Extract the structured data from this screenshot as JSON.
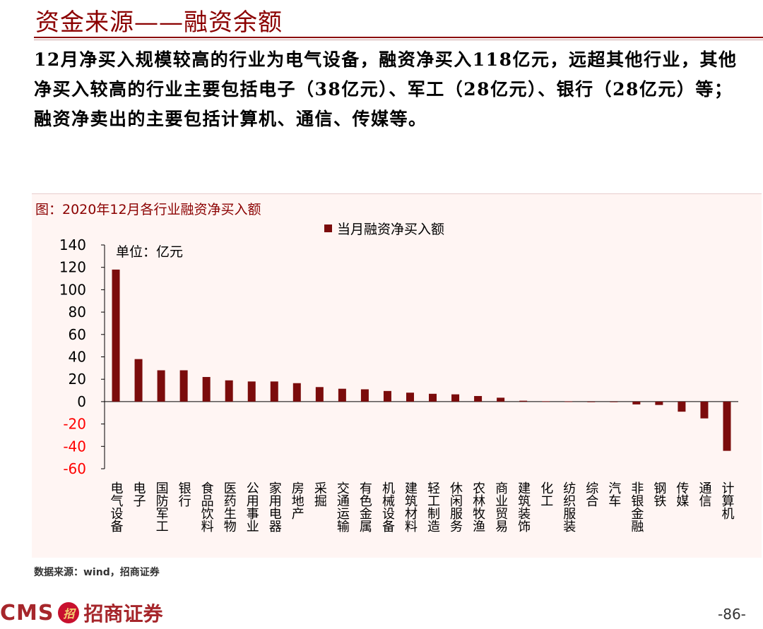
{
  "page": {
    "title": "资金来源——融资余额",
    "summary": "12月净买入规模较高的行业为电气设备，融资净买入118亿元，远超其他行业，其他净买入较高的行业主要包括电子（38亿元）、军工（28亿元）、银行（28亿元）等；融资净卖出的主要包括计算机、通信、传媒等。",
    "chart_caption": "图：2020年12月各行业融资净买入额",
    "source": "数据来源：wind，招商证券",
    "logo_en": "CMS",
    "logo_badge": "招",
    "logo_cn": "招商证券",
    "page_number": "-86-"
  },
  "colors": {
    "bar": "#7b0c0c",
    "title": "#8b0000",
    "negative_tick": "#ff0000",
    "chart_bg": "#fff5f3"
  },
  "chart_data": {
    "type": "bar",
    "categories": [
      "电气设备",
      "电子",
      "国防军工",
      "银行",
      "食品饮料",
      "医药生物",
      "公用事业",
      "家用电器",
      "房地产",
      "采掘",
      "交通运输",
      "有色金属",
      "机械设备",
      "建筑材料",
      "轻工制造",
      "休闲服务",
      "农林牧渔",
      "商业贸易",
      "建筑装饰",
      "化工",
      "纺织服装",
      "综合",
      "汽车",
      "非银金融",
      "钢铁",
      "传媒",
      "通信",
      "计算机"
    ],
    "series": [
      {
        "name": "当月融资净买入额",
        "values": [
          118,
          38,
          28,
          28,
          22,
          19,
          18,
          18,
          16.5,
          13,
          11.5,
          11,
          9.5,
          8,
          7,
          6.5,
          5,
          3.5,
          0.8,
          0.3,
          0.2,
          -0.3,
          -0.5,
          -2.5,
          -3,
          -9,
          -15,
          -44
        ]
      }
    ],
    "title": "",
    "ylabel": "",
    "unit_label": "单位：亿元",
    "yticks": [
      140,
      120,
      100,
      80,
      60,
      40,
      20,
      0,
      -20,
      -40,
      -60
    ],
    "ylim": [
      -60,
      140
    ],
    "legend_position": "top-center",
    "grid": false
  }
}
